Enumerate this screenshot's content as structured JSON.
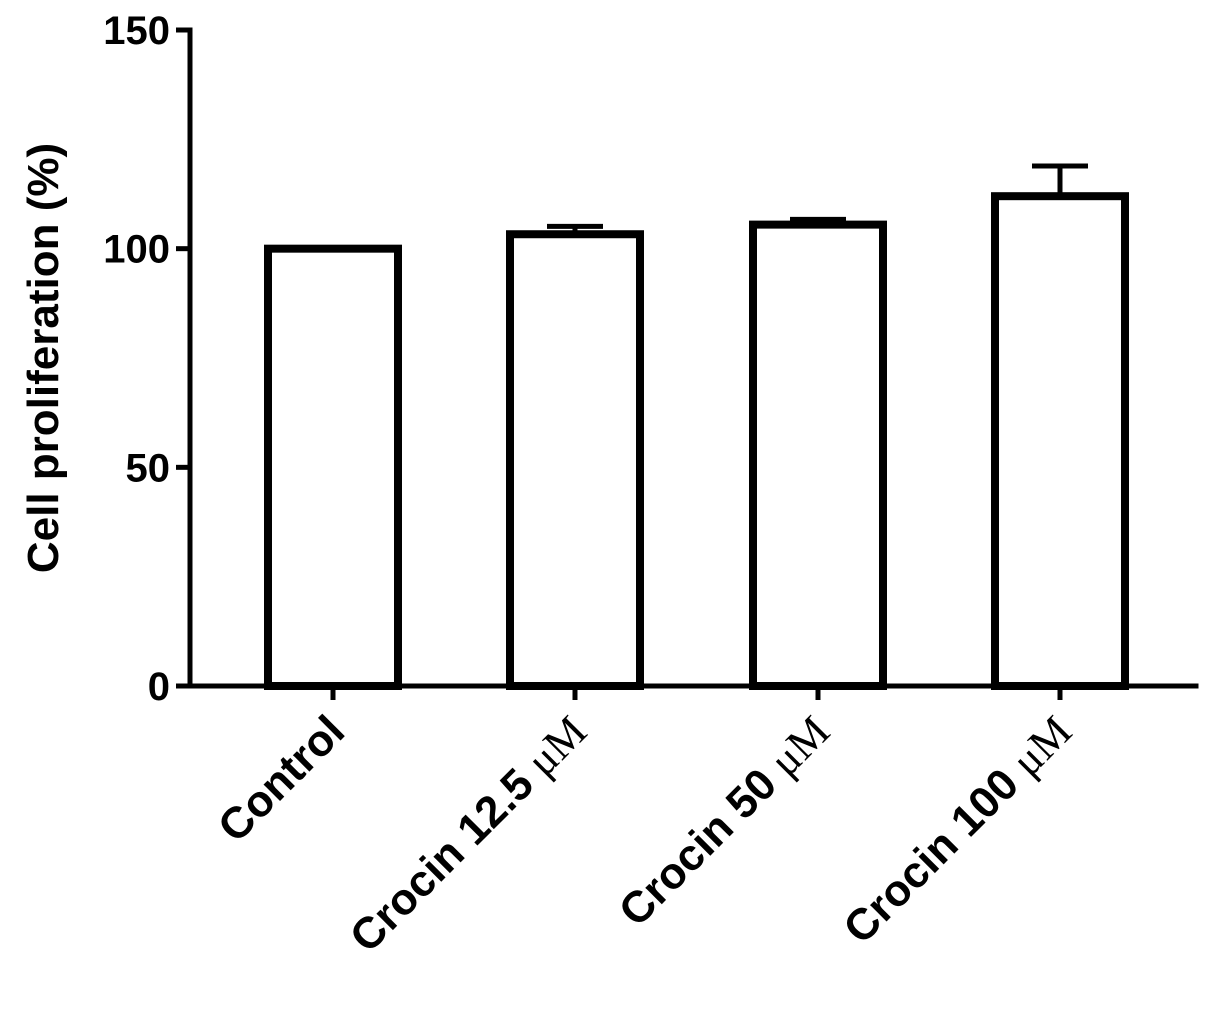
{
  "chart_data": {
    "type": "bar",
    "title": "",
    "xlabel": "",
    "ylabel": "Cell proliferation (%)",
    "ylim": [
      0,
      150
    ],
    "yticks": [
      0,
      50,
      100,
      150
    ],
    "grid": false,
    "categories": [
      {
        "prefix": "Control",
        "unit": ""
      },
      {
        "prefix": "Crocin 12.5 ",
        "unit": "μM"
      },
      {
        "prefix": "Crocin 50 ",
        "unit": "μM"
      },
      {
        "prefix": "Crocin 100 ",
        "unit": "μM"
      }
    ],
    "values": [
      100,
      103.3,
      105.5,
      112
    ],
    "errors": [
      0,
      1.8,
      1.2,
      6.9
    ]
  }
}
